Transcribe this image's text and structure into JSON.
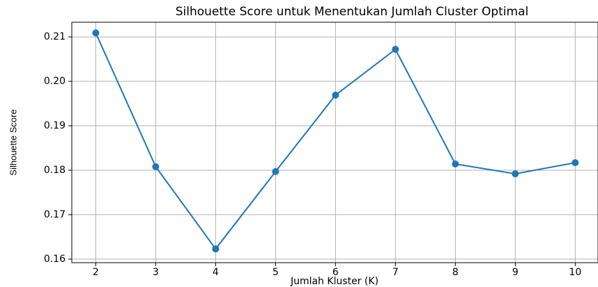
{
  "chart_data": {
    "type": "line",
    "title": "Silhouette Score untuk Menentukan Jumlah Cluster Optimal",
    "x_label": "Jumlah Kluster (K)",
    "y_label": "Silhouette Score",
    "x": [
      2,
      3,
      4,
      5,
      6,
      7,
      8,
      9,
      10
    ],
    "series": [
      {
        "name": null,
        "color": "#1f77b4",
        "values": [
          0.2109,
          0.1808,
          0.1623,
          0.1797,
          0.1969,
          0.2072,
          0.1814,
          0.1792,
          0.1817
        ]
      }
    ],
    "xlim": [
      1.6,
      10.38
    ],
    "ylim": [
      0.1592,
      0.2133
    ],
    "xticks": [
      2,
      3,
      4,
      5,
      6,
      7,
      8,
      9,
      10
    ],
    "yticks": [
      0.16,
      0.17,
      0.18,
      0.19,
      {
        "value": 0.2,
        "label": "0.20"
      },
      0.21
    ],
    "grid": true
  }
}
